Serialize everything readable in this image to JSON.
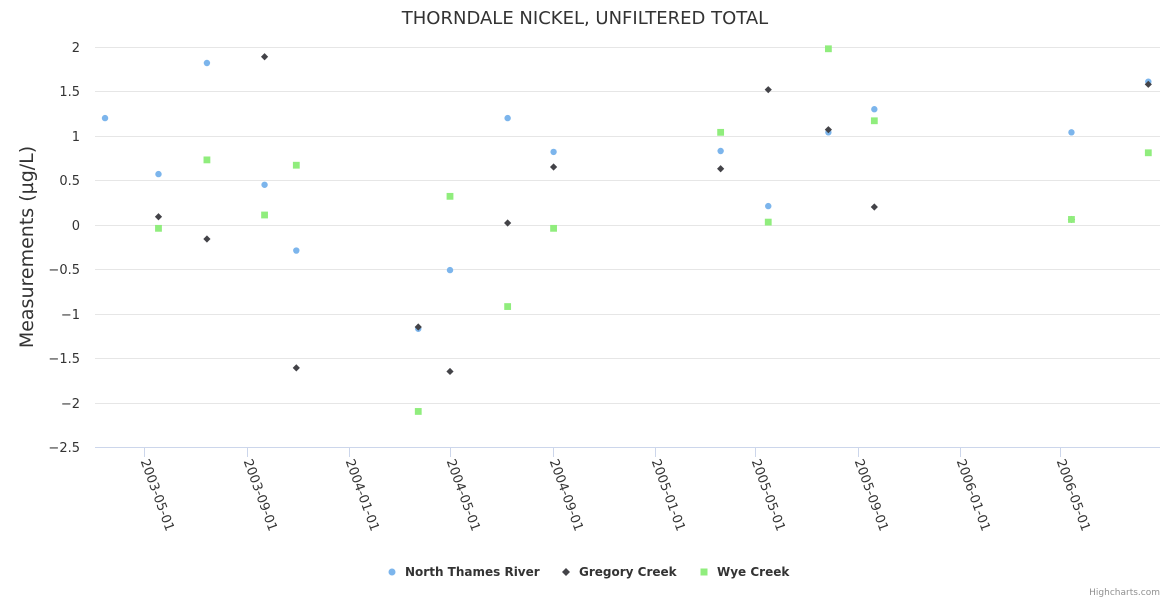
{
  "chart_data": {
    "type": "scatter",
    "title": "THORNDALE NICKEL, UNFILTERED TOTAL",
    "xlabel": "",
    "ylabel": "Measurements (µg/L)",
    "ylim": [
      -2.5,
      2
    ],
    "yticks": [
      2,
      1.5,
      1,
      0.5,
      0,
      -0.5,
      -1,
      -1.5,
      -2,
      -2.5
    ],
    "ytick_labels": [
      "2",
      "1.5",
      "1",
      "0.5",
      "0",
      "−0.5",
      "−1",
      "−1.5",
      "−2",
      "−2.5"
    ],
    "xlim": [
      "2003-03-03",
      "2006-08-29"
    ],
    "xticks": [
      "2003-05-01",
      "2003-09-01",
      "2004-01-01",
      "2004-05-01",
      "2004-09-01",
      "2005-01-01",
      "2005-05-01",
      "2005-09-01",
      "2006-01-01",
      "2006-05-01"
    ],
    "grid": true,
    "legend_position": "bottom-center",
    "series": [
      {
        "name": "North Thames River",
        "color": "#7cb5ec",
        "marker": "circle",
        "points": [
          {
            "x": "2003-03-15",
            "y": 1.2
          },
          {
            "x": "2003-05-18",
            "y": 0.57
          },
          {
            "x": "2003-07-15",
            "y": 1.82
          },
          {
            "x": "2003-09-22",
            "y": 0.45
          },
          {
            "x": "2003-10-30",
            "y": -0.29
          },
          {
            "x": "2004-03-24",
            "y": -1.17
          },
          {
            "x": "2004-05-01",
            "y": -0.51
          },
          {
            "x": "2004-07-09",
            "y": 1.2
          },
          {
            "x": "2004-09-02",
            "y": 0.82
          },
          {
            "x": "2005-03-21",
            "y": 0.83
          },
          {
            "x": "2005-05-17",
            "y": 0.21
          },
          {
            "x": "2005-07-28",
            "y": 1.04
          },
          {
            "x": "2005-09-21",
            "y": 1.3
          },
          {
            "x": "2006-05-15",
            "y": 1.04
          },
          {
            "x": "2006-08-15",
            "y": 1.61
          }
        ]
      },
      {
        "name": "Gregory Creek",
        "color": "#434348",
        "marker": "diamond",
        "points": [
          {
            "x": "2003-05-18",
            "y": 0.09
          },
          {
            "x": "2003-07-15",
            "y": -0.16
          },
          {
            "x": "2003-09-22",
            "y": 1.89
          },
          {
            "x": "2003-10-30",
            "y": -1.61
          },
          {
            "x": "2004-03-24",
            "y": -1.15
          },
          {
            "x": "2004-05-01",
            "y": -1.65
          },
          {
            "x": "2004-07-09",
            "y": 0.02
          },
          {
            "x": "2004-09-02",
            "y": 0.65
          },
          {
            "x": "2005-03-21",
            "y": 0.63
          },
          {
            "x": "2005-05-17",
            "y": 1.52
          },
          {
            "x": "2005-07-28",
            "y": 1.07
          },
          {
            "x": "2005-09-21",
            "y": 0.2
          },
          {
            "x": "2006-05-15",
            "y": 0.06
          },
          {
            "x": "2006-08-15",
            "y": 1.58
          }
        ]
      },
      {
        "name": "Wye Creek",
        "color": "#90ed7d",
        "marker": "square",
        "points": [
          {
            "x": "2003-05-18",
            "y": -0.04
          },
          {
            "x": "2003-07-15",
            "y": 0.73
          },
          {
            "x": "2003-09-22",
            "y": 0.11
          },
          {
            "x": "2003-10-30",
            "y": 0.67
          },
          {
            "x": "2004-03-24",
            "y": -2.1
          },
          {
            "x": "2004-05-01",
            "y": 0.32
          },
          {
            "x": "2004-07-09",
            "y": -0.92
          },
          {
            "x": "2004-09-02",
            "y": -0.04
          },
          {
            "x": "2005-03-21",
            "y": 1.04
          },
          {
            "x": "2005-05-17",
            "y": 0.03
          },
          {
            "x": "2005-07-28",
            "y": 1.98
          },
          {
            "x": "2005-09-21",
            "y": 1.17
          },
          {
            "x": "2006-05-15",
            "y": 0.06
          },
          {
            "x": "2006-08-15",
            "y": 0.81
          }
        ]
      }
    ]
  },
  "credits": "Highcharts.com"
}
